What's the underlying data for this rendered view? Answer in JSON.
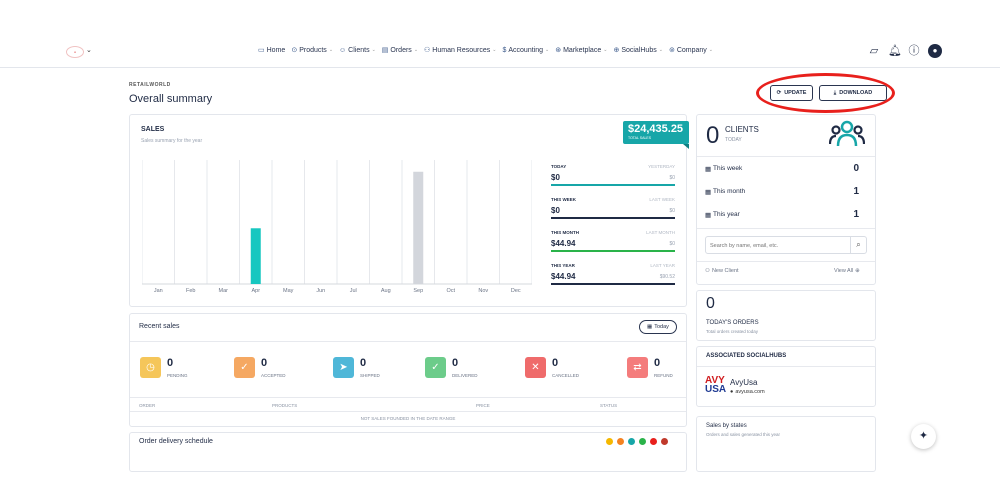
{
  "nav": {
    "items": [
      {
        "icon": "▭",
        "label": "Home",
        "dd": false
      },
      {
        "icon": "⊙",
        "label": "Products",
        "dd": true
      },
      {
        "icon": "☺",
        "label": "Clients",
        "dd": true
      },
      {
        "icon": "▤",
        "label": "Orders",
        "dd": true
      },
      {
        "icon": "⚇",
        "label": "Human Resources",
        "dd": true
      },
      {
        "icon": "$",
        "label": "Accounting",
        "dd": true
      },
      {
        "icon": "⊛",
        "label": "Marketplace",
        "dd": true
      },
      {
        "icon": "⊕",
        "label": "SocialHubs",
        "dd": true
      },
      {
        "icon": "⊚",
        "label": "Company",
        "dd": true
      }
    ]
  },
  "page": {
    "breadcrumb": "RETAILWORLD",
    "title": "Overall summary"
  },
  "actions": {
    "update_label": "UPDATE",
    "download_label": "DOWNLOAD"
  },
  "sales": {
    "title": "SALES",
    "subtitle": "Sales summary for the year",
    "total": "$24,435.25",
    "total_label": "TOTAL SALES",
    "periods": [
      {
        "label": "TODAY",
        "prev_label": "YESTERDAY",
        "value": "$0",
        "prev_value": "$0",
        "color": "#17a6a8"
      },
      {
        "label": "THIS WEEK",
        "prev_label": "LAST WEEK",
        "value": "$0",
        "prev_value": "$0",
        "color": "#1f2a44"
      },
      {
        "label": "THIS MONTH",
        "prev_label": "LAST MONTH",
        "value": "$44.94",
        "prev_value": "$0",
        "color": "#2ab34a"
      },
      {
        "label": "THIS YEAR",
        "prev_label": "LAST YEAR",
        "value": "$44.94",
        "prev_value": "$90.52",
        "color": "#1f2a44"
      }
    ]
  },
  "chart_data": {
    "type": "bar",
    "categories": [
      "Jan",
      "Feb",
      "Mar",
      "Apr",
      "May",
      "Jun",
      "Jul",
      "Aug",
      "Sep",
      "Oct",
      "Nov",
      "Dec"
    ],
    "series": [
      {
        "values": [
          0,
          0,
          0,
          44.94,
          0,
          0,
          0,
          0,
          0,
          0,
          0,
          0
        ],
        "color": "#17c7c0"
      },
      {
        "values": [
          0,
          0,
          0,
          0,
          0,
          0,
          0,
          0,
          90.52,
          0,
          0,
          0
        ],
        "color": "#d3d6dc"
      }
    ],
    "ylim": [
      0,
      100
    ],
    "grid": "vertical"
  },
  "recent": {
    "title": "Recent sales",
    "filter_label": "Today",
    "stats": [
      {
        "icon": "◷",
        "count": "0",
        "label": "PENDING",
        "color": "#f5c65a"
      },
      {
        "icon": "✓",
        "count": "0",
        "label": "ACCEPTED",
        "color": "#f5a862"
      },
      {
        "icon": "➤",
        "count": "0",
        "label": "SHIPPED",
        "color": "#4fb7d8"
      },
      {
        "icon": "✓",
        "count": "0",
        "label": "DELIVERED",
        "color": "#6ccc8a"
      },
      {
        "icon": "✕",
        "count": "0",
        "label": "CANCELLED",
        "color": "#ef6b6b"
      },
      {
        "icon": "⇄",
        "count": "0",
        "label": "REFUND",
        "color": "#f47c7c"
      }
    ],
    "columns": [
      "ORDER",
      "PRODUCTS",
      "PRICE",
      "STATUS"
    ],
    "empty": "NOT SALES FOUNDED IN THE DATE RANGE"
  },
  "delivery": {
    "title": "Order delivery schedule",
    "dots": [
      "#f5b800",
      "#f58220",
      "#17a6a8",
      "#2ab34a",
      "#e8201c",
      "#c0392b"
    ]
  },
  "clients": {
    "count": "0",
    "title": "CLIENTS",
    "subtitle": "TODAY",
    "rows": [
      {
        "label": "This week",
        "value": "0"
      },
      {
        "label": "This month",
        "value": "1"
      },
      {
        "label": "This year",
        "value": "1"
      }
    ],
    "search_placeholder": "Search by name, email, etc.",
    "new_client": "New Client",
    "view_all": "View All"
  },
  "orders": {
    "count": "0",
    "title": "TODAY'S ORDERS",
    "subtitle": "Total orders created today"
  },
  "socialhubs": {
    "title": "ASSOCIATED SOCIALHUBS",
    "name": "AvyUsa",
    "url": "avyusa.com",
    "logo_top": "AVY",
    "logo_bottom": "USA"
  },
  "states": {
    "title": "Sales by states",
    "subtitle": "Orders and sales generated this year"
  }
}
